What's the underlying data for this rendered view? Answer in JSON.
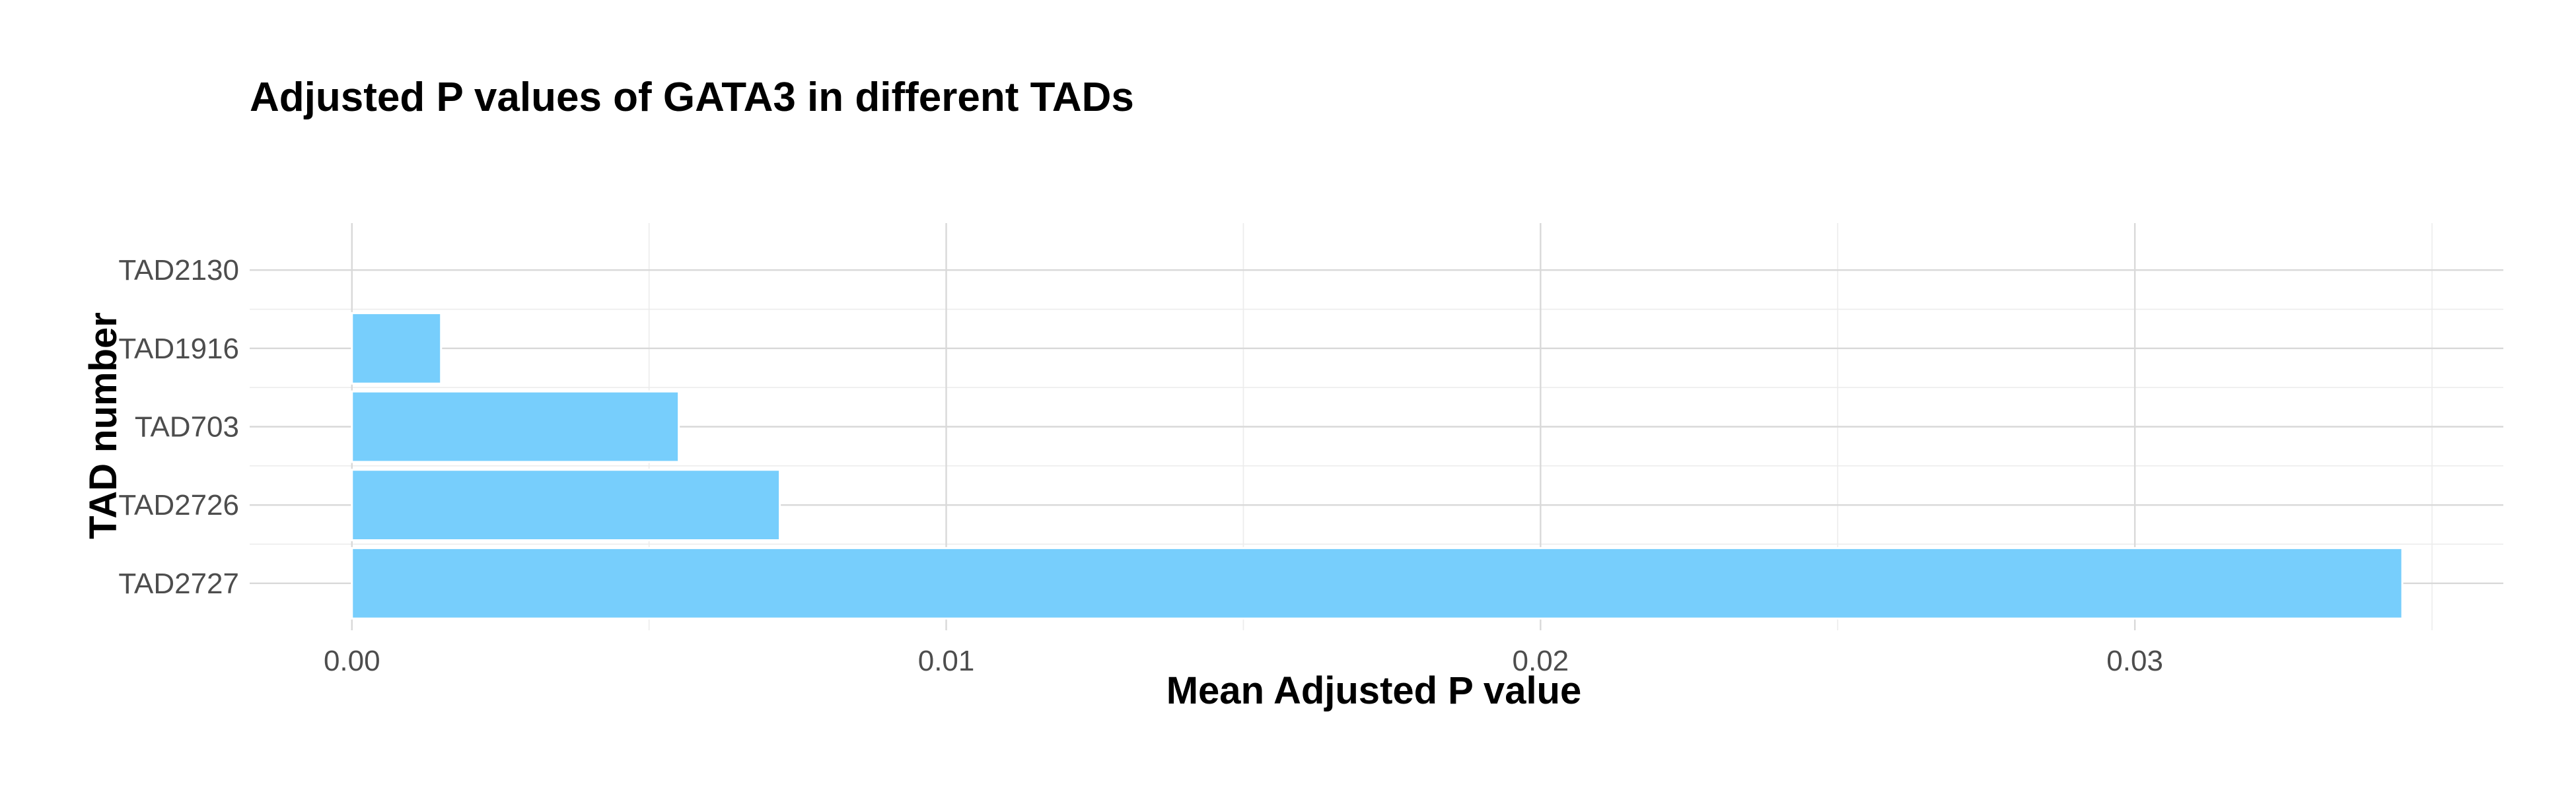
{
  "chart_data": {
    "type": "bar",
    "orientation": "horizontal",
    "title": "Adjusted P values of GATA3 in different TADs",
    "xlabel": "Mean Adjusted P value",
    "ylabel": "TAD number",
    "categories": [
      "TAD2727",
      "TAD2726",
      "TAD703",
      "TAD1916",
      "TAD2130"
    ],
    "values": [
      0.0345,
      0.0072,
      0.0055,
      0.0015,
      0.0
    ],
    "xlim": [
      -0.00172,
      0.0362
    ],
    "x_ticks": [
      0.0,
      0.01,
      0.02,
      0.03
    ],
    "x_tick_labels": [
      "0.00",
      "0.01",
      "0.02",
      "0.03"
    ],
    "grid": true,
    "bar_color": "#74CDFC",
    "legend": "none"
  }
}
